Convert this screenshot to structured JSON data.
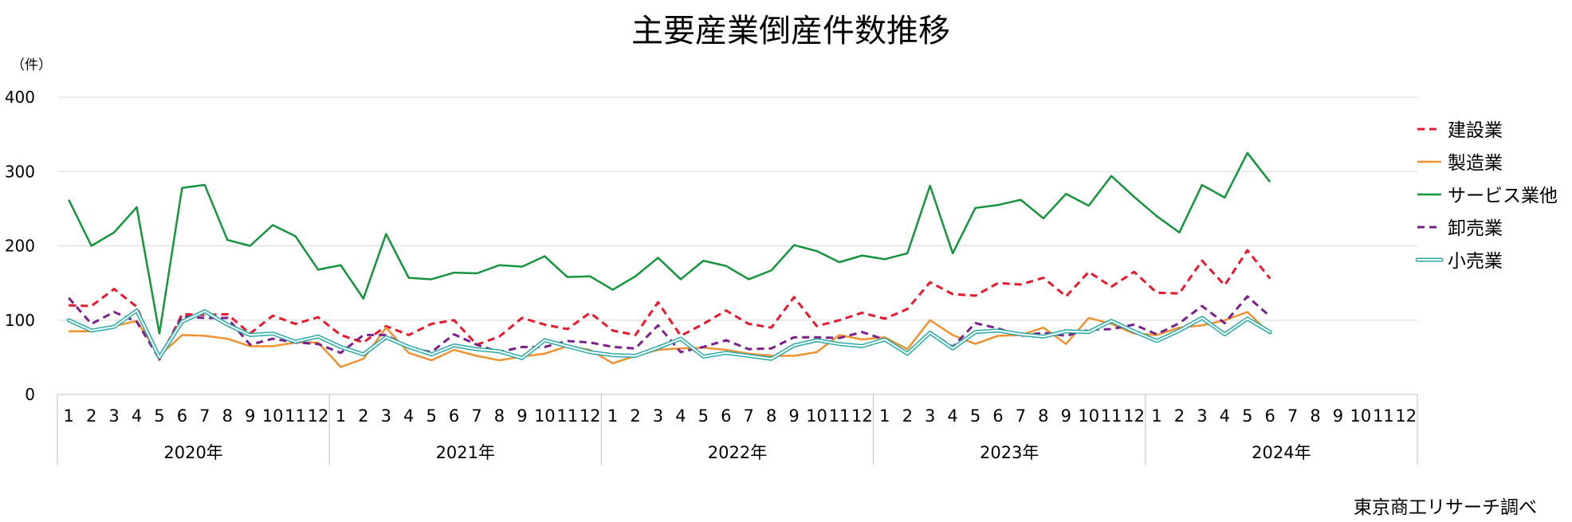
{
  "chart_data": {
    "type": "line",
    "title": "主要産業倒産件数推移",
    "unit_label": "（件）",
    "source": "東京商工リサーチ調べ",
    "ylim": [
      0,
      400
    ],
    "yticks": [
      "0",
      "100",
      "200",
      "300",
      "400"
    ],
    "grid": true,
    "legend_position": "right",
    "years": [
      "2020年",
      "2021年",
      "2022年",
      "2023年",
      "2024年"
    ],
    "months": [
      "1",
      "2",
      "3",
      "4",
      "5",
      "6",
      "7",
      "8",
      "9",
      "10",
      "11",
      "12"
    ],
    "series": [
      {
        "name": "建設業",
        "color": "#e8192c",
        "style": "dashed",
        "values": [
          120,
          119,
          142,
          118,
          47,
          108,
          107,
          108,
          82,
          106,
          95,
          104,
          80,
          70,
          92,
          80,
          95,
          100,
          67,
          78,
          103,
          94,
          88,
          110,
          86,
          80,
          124,
          79,
          95,
          113,
          95,
          90,
          131,
          92,
          100,
          110,
          102,
          115,
          151,
          135,
          133,
          150,
          148,
          157,
          132,
          165,
          145,
          165,
          137,
          136,
          180,
          147,
          194,
          156
        ]
      },
      {
        "name": "製造業",
        "color": "#f0922f",
        "style": "solid",
        "values": [
          85,
          85,
          92,
          99,
          52,
          80,
          79,
          75,
          65,
          65,
          70,
          70,
          37,
          48,
          90,
          56,
          46,
          60,
          52,
          46,
          51,
          55,
          65,
          60,
          42,
          52,
          60,
          62,
          63,
          60,
          55,
          52,
          52,
          57,
          80,
          74,
          77,
          61,
          100,
          80,
          68,
          79,
          80,
          90,
          68,
          103,
          95,
          82,
          80,
          90,
          93,
          100,
          111,
          82
        ]
      },
      {
        "name": "サービス業他",
        "color": "#15943c",
        "style": "solid",
        "values": [
          262,
          200,
          218,
          252,
          82,
          278,
          282,
          208,
          200,
          228,
          213,
          168,
          174,
          129,
          216,
          157,
          155,
          164,
          163,
          174,
          172,
          186,
          158,
          159,
          141,
          159,
          184,
          155,
          180,
          173,
          155,
          167,
          201,
          193,
          178,
          187,
          182,
          190,
          281,
          190,
          251,
          255,
          262,
          237,
          270,
          254,
          294,
          266,
          240,
          218,
          282,
          265,
          325,
          286
        ]
      },
      {
        "name": "卸売業",
        "color": "#7b1f8c",
        "style": "dashed",
        "values": [
          130,
          95,
          111,
          98,
          48,
          105,
          103,
          103,
          67,
          75,
          70,
          68,
          56,
          80,
          80,
          63,
          57,
          81,
          67,
          57,
          64,
          64,
          72,
          70,
          64,
          62,
          93,
          57,
          64,
          73,
          61,
          62,
          77,
          77,
          76,
          84,
          74,
          54,
          84,
          64,
          96,
          89,
          79,
          83,
          79,
          87,
          88,
          94,
          81,
          96,
          119,
          96,
          132,
          105
        ]
      },
      {
        "name": "小売業",
        "color": "#29a9a7",
        "style": "double",
        "values": [
          100,
          86,
          91,
          113,
          50,
          98,
          112,
          94,
          80,
          82,
          71,
          78,
          64,
          54,
          77,
          64,
          54,
          66,
          61,
          58,
          49,
          73,
          65,
          57,
          53,
          52,
          63,
          75,
          51,
          56,
          52,
          48,
          66,
          73,
          68,
          65,
          74,
          55,
          83,
          62,
          84,
          86,
          81,
          78,
          85,
          84,
          99,
          85,
          72,
          86,
          103,
          81,
          102,
          84
        ]
      }
    ]
  }
}
